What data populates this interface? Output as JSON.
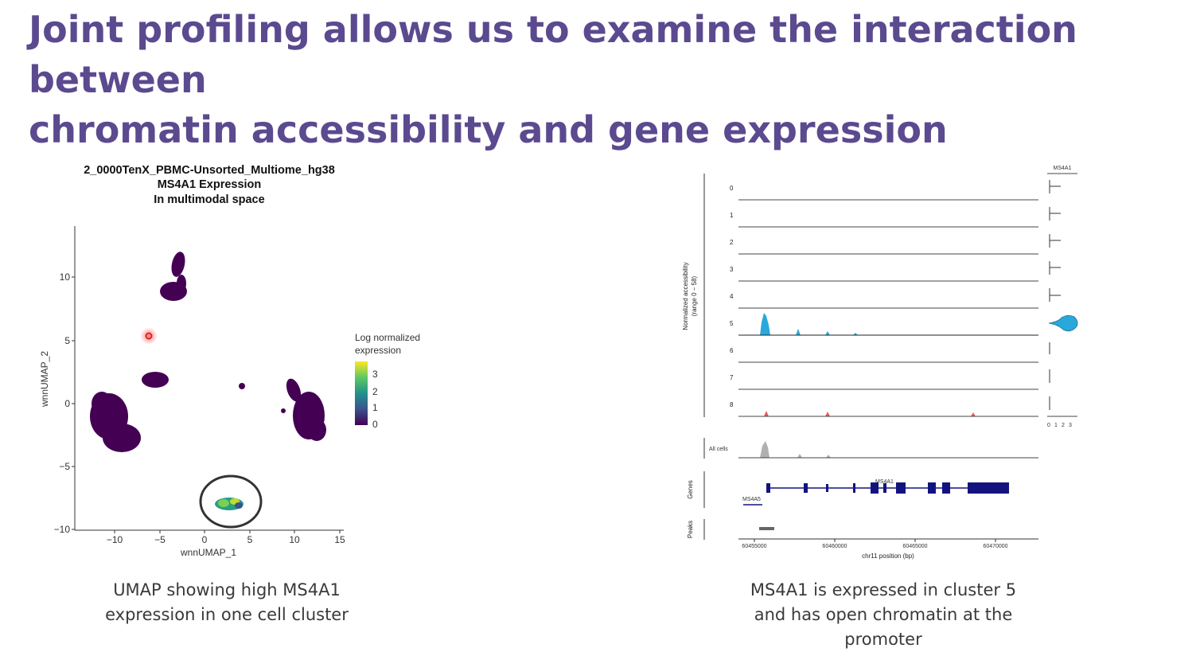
{
  "slide": {
    "title_line1": "Joint profiling allows us to examine the interaction between",
    "title_line2": "chromatin accessibility and gene expression"
  },
  "umap": {
    "title_lines": [
      "2_0000TenX_PBMC-Unsorted_Multiome_hg38",
      "MS4A1 Expression",
      "In multimodal space"
    ],
    "xlabel": "wnnUMAP_1",
    "ylabel": "wnnUMAP_2",
    "x_ticks": [
      "−10",
      "−5",
      "0",
      "5",
      "10",
      "15"
    ],
    "y_ticks": [
      "10",
      "5",
      "0",
      "−5",
      "−10"
    ],
    "legend": {
      "title_lines": [
        "Log normalized",
        "expression"
      ],
      "ticks": [
        "3",
        "2",
        "1",
        "0"
      ]
    },
    "colors": {
      "low": "#440154",
      "mid": "#21918c",
      "high": "#fde725",
      "highlight_circle": "#333333",
      "red_marker": "#e0241b"
    }
  },
  "coverage": {
    "ylabel_lines": [
      "Normalized accessibility",
      "(range 0 − 58)"
    ],
    "tracks": [
      "0",
      "1",
      "2",
      "3",
      "4",
      "5",
      "6",
      "7",
      "8"
    ],
    "all_cells_label": "All cells",
    "genes_label": "Genes",
    "peaks_label": "Peaks",
    "gene_names": [
      "MS4A1",
      "MS4A5"
    ],
    "x_ticks": [
      "60455000",
      "60460000",
      "60465000",
      "60470000"
    ],
    "xlabel": "chr11 position (bp)",
    "violin_title": "MS4A1",
    "violin_ticks": [
      "0",
      "1",
      "2",
      "3"
    ],
    "colors": {
      "cluster5": "#29a8dc",
      "cluster8": "#e8585a",
      "allcells": "#b0b0b0",
      "gene": "#13137f"
    }
  },
  "captions": {
    "left_line1": "UMAP showing high MS4A1",
    "left_line2": "expression in one cell cluster",
    "right_line1": "MS4A1 is expressed in cluster 5",
    "right_line2": "and has open chromatin at the",
    "right_line3": "promoter"
  }
}
